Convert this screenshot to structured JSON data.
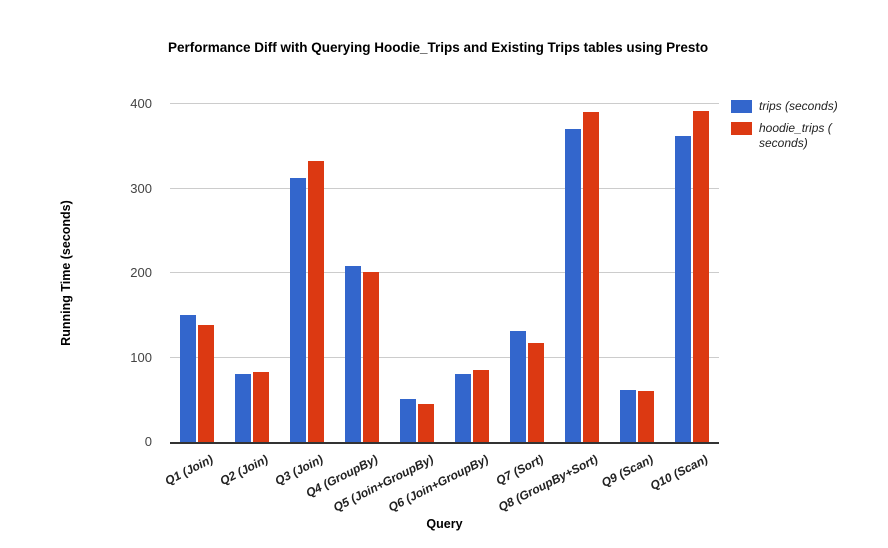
{
  "chart_data": {
    "type": "bar",
    "title": "Performance Diff with Querying Hoodie_Trips and Existing Trips tables using Presto",
    "xlabel": "Query",
    "ylabel": "Running Time (seconds)",
    "ylim": [
      0,
      400
    ],
    "yticks": [
      0,
      100,
      200,
      300,
      400
    ],
    "grid": true,
    "legend_position": "right",
    "categories": [
      "Q1 (Join)",
      "Q2 (Join)",
      "Q3 (Join)",
      "Q4 (GroupBy)",
      "Q5 (Join+GroupBy)",
      "Q6 (Join+GroupBy)",
      "Q7 (Sort)",
      "Q8 (GroupBy+Sort)",
      "Q9 (Scan)",
      "Q10 (Scan)"
    ],
    "series": [
      {
        "name": "trips (seconds)",
        "color": "#3366cc",
        "values": [
          150,
          80,
          313,
          208,
          51,
          80,
          131,
          371,
          61,
          362
        ]
      },
      {
        "name": "hoodie_trips ( seconds)",
        "color": "#dc3912",
        "values": [
          138,
          83,
          332,
          201,
          45,
          85,
          117,
          390,
          60,
          392
        ]
      }
    ],
    "colors": {
      "gridline": "#cccccc",
      "axis_line": "#333333",
      "title_text": "#000000",
      "tick_text": "#444444",
      "background": "#ffffff"
    }
  }
}
